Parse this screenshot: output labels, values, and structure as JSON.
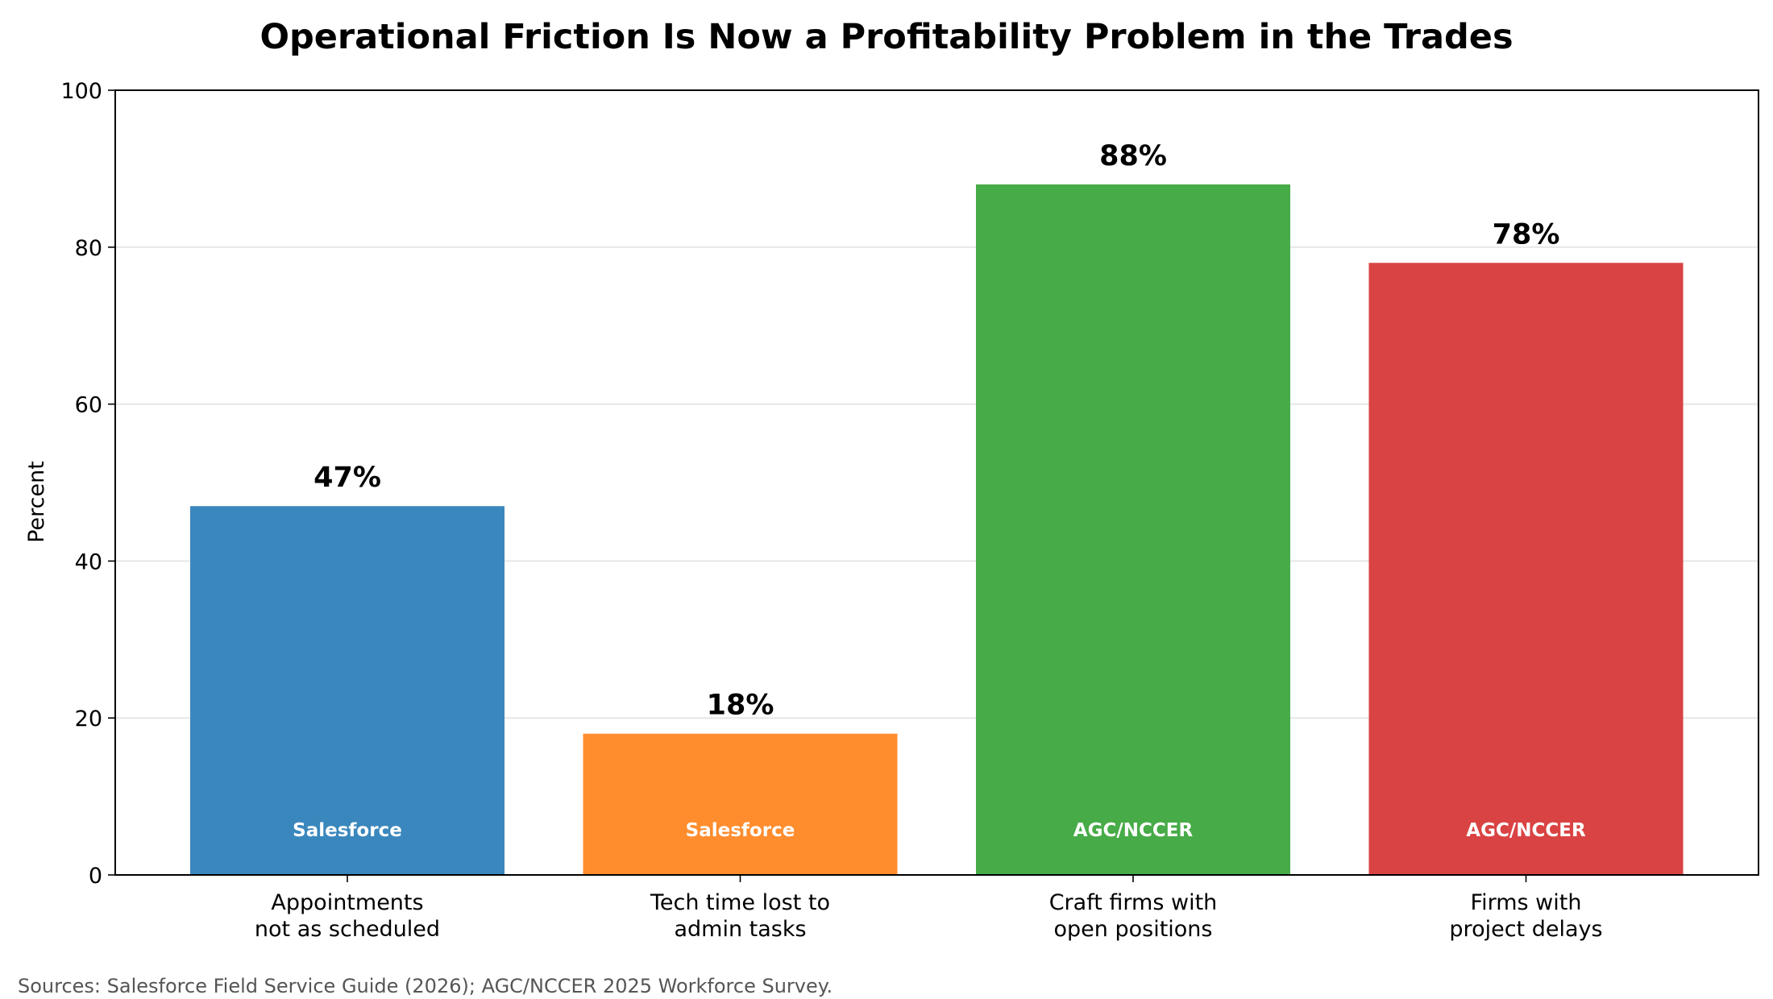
{
  "chart_data": {
    "type": "bar",
    "title": "Operational Friction Is Now a Profitability Problem in the Trades",
    "xlabel": "",
    "ylabel": "Percent",
    "ylim": [
      0,
      100
    ],
    "yticks": [
      0,
      20,
      40,
      60,
      80,
      100
    ],
    "grid": "horizontal",
    "categories": [
      [
        "Appointments",
        "not as scheduled"
      ],
      [
        "Tech time lost to",
        "admin tasks"
      ],
      [
        "Craft firms with",
        "open positions"
      ],
      [
        "Firms with",
        "project delays"
      ]
    ],
    "values": [
      47,
      18,
      88,
      78
    ],
    "value_labels": [
      "47%",
      "18%",
      "88%",
      "78%"
    ],
    "bar_sources": [
      "Salesforce",
      "Salesforce",
      "AGC/NCCER",
      "AGC/NCCER"
    ],
    "colors": [
      "#3a87bd",
      "#ff8d2e",
      "#47ab47",
      "#da4343"
    ]
  },
  "footnote": "Sources: Salesforce Field Service Guide (2026); AGC/NCCER 2025 Workforce Survey."
}
